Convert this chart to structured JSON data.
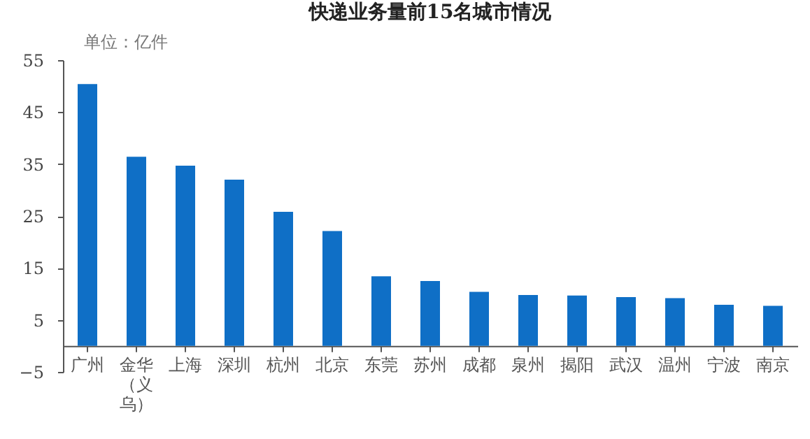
{
  "chart_data": {
    "type": "bar",
    "title": "快递业务量前15名城市情况",
    "annotations": [
      "单位：亿件"
    ],
    "categories": [
      "广州",
      "金华（义乌）",
      "上海",
      "深圳",
      "杭州",
      "北京",
      "东莞",
      "苏州",
      "成都",
      "泉州",
      "揭阳",
      "武汉",
      "温州",
      "宁波",
      "南京"
    ],
    "values": [
      50.4,
      36.4,
      34.7,
      32.0,
      25.8,
      22.1,
      13.4,
      12.5,
      10.4,
      9.8,
      9.7,
      9.4,
      9.2,
      7.9,
      7.7
    ],
    "color": "#0f6fc6",
    "ylim": [
      -5,
      55
    ],
    "yticks": [
      -5,
      5,
      15,
      25,
      35,
      45,
      55
    ],
    "grid": false
  }
}
